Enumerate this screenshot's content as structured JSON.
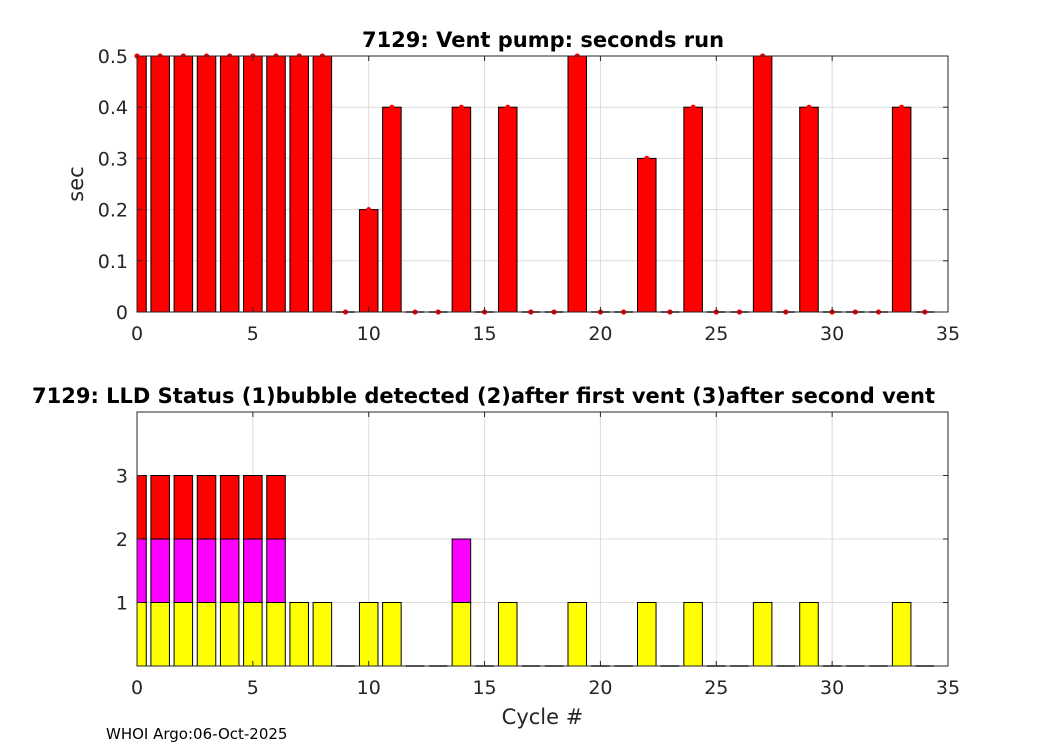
{
  "footer_text": "WHOI Argo:06-Oct-2025",
  "colors": {
    "vent": "#ff0000",
    "lld1": "#ffff00",
    "lld2": "#ff00ff",
    "lld3": "#ff0000",
    "grid": "#dcdcdc",
    "axis": "#262626"
  },
  "chart_data": [
    {
      "type": "bar",
      "title": "7129: Vent pump: seconds run",
      "xlabel": "",
      "ylabel": "sec",
      "xlim": [
        0,
        35
      ],
      "ylim": [
        0,
        0.5
      ],
      "xticks": [
        "0",
        "5",
        "10",
        "15",
        "20",
        "25",
        "30",
        "35"
      ],
      "yticks": [
        "0",
        "0.1",
        "0.2",
        "0.3",
        "0.4",
        "0.5"
      ],
      "grid": true,
      "x": [
        0,
        1,
        2,
        3,
        4,
        5,
        6,
        7,
        8,
        9,
        10,
        11,
        12,
        13,
        14,
        15,
        16,
        17,
        18,
        19,
        20,
        21,
        22,
        23,
        24,
        25,
        26,
        27,
        28,
        29,
        30,
        31,
        32,
        33,
        34
      ],
      "values": [
        0.5,
        0.5,
        0.5,
        0.5,
        0.5,
        0.5,
        0.5,
        0.5,
        0.5,
        0,
        0.2,
        0.4,
        0,
        0,
        0.4,
        0,
        0.4,
        0,
        0,
        0.5,
        0,
        0,
        0.3,
        0,
        0.4,
        0,
        0,
        0.5,
        0,
        0.4,
        0,
        0,
        0,
        0.4,
        0
      ]
    },
    {
      "type": "bar",
      "title": "7129: LLD Status   (1)bubble detected   (2)after first vent  (3)after second vent",
      "xlabel": "Cycle #",
      "ylabel": "",
      "xlim": [
        0,
        35
      ],
      "ylim": [
        0,
        4
      ],
      "xticks": [
        "0",
        "5",
        "10",
        "15",
        "20",
        "25",
        "30",
        "35"
      ],
      "yticks": [
        "1",
        "2",
        "3"
      ],
      "grid": true,
      "x": [
        0,
        1,
        2,
        3,
        4,
        5,
        6,
        7,
        8,
        9,
        10,
        11,
        12,
        13,
        14,
        15,
        16,
        17,
        18,
        19,
        20,
        21,
        22,
        23,
        24,
        25,
        26,
        27,
        28,
        29,
        30,
        31,
        32,
        33,
        34
      ],
      "values": [
        3,
        3,
        3,
        3,
        3,
        3,
        3,
        1,
        1,
        0,
        1,
        1,
        0,
        0,
        2,
        0,
        1,
        0,
        0,
        1,
        0,
        0,
        1,
        0,
        1,
        0,
        0,
        1,
        0,
        1,
        0,
        0,
        0,
        1,
        0
      ]
    }
  ]
}
